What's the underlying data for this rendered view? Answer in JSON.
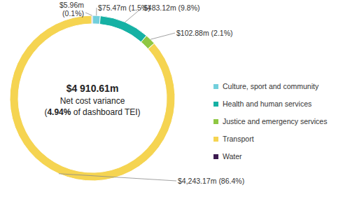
{
  "chart_data": {
    "type": "donut",
    "title": "$4 910.61m",
    "subtitle": "Net cost variance",
    "annotations": [
      "(4.94% of dashboard TEI)"
    ],
    "categories": [
      "Culture, sport and community",
      "Health and human services",
      "Justice and emergency services",
      "Transport",
      "Water"
    ],
    "values": [
      75.47,
      483.12,
      102.88,
      4243.17,
      5.96
    ],
    "value_labels": [
      "$75.47m (1.5%)",
      "$483.12m (9.8%)",
      "$102.88m (2.1%)",
      "$4,243.17m (86.4%)",
      "$5.96m (0.1%)"
    ],
    "colors": [
      "#72cfdc",
      "#16b1a4",
      "#8fc742",
      "#f5d451",
      "#3b1a4f"
    ],
    "data_labels": true,
    "legend": "right"
  }
}
